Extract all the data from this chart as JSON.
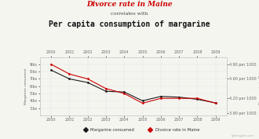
{
  "title_line1": "Divorce rate in Maine",
  "title_line2": "correlates with",
  "title_line3": "Per capita consumption of margarine",
  "years": [
    2000,
    2001,
    2002,
    2003,
    2004,
    2005,
    2006,
    2007,
    2008,
    2009
  ],
  "margarine": [
    8.2,
    7.0,
    6.5,
    5.3,
    5.2,
    4.0,
    4.6,
    4.5,
    4.2,
    3.7
  ],
  "divorce": [
    4.9,
    4.7,
    4.6,
    4.4,
    4.3,
    4.1,
    4.2,
    4.2,
    4.2,
    4.1
  ],
  "margarine_color": "#1a1a1a",
  "divorce_color": "#cc0000",
  "bg_color": "#f5f5f0",
  "left_ylim": [
    3.85,
    5.05
  ],
  "right_ylim": [
    2.0,
    10.0
  ],
  "left_yticks": [
    4.9,
    4.6,
    4.2,
    3.9
  ],
  "left_yticklabels": [
    "4.90 per 1000",
    "4.60 per 1000",
    "4.20 per 1000",
    "3.90 per 1000"
  ],
  "right_yticks": [
    9.0,
    8.0,
    7.0,
    6.0,
    5.0,
    4.0,
    3.0
  ],
  "right_yticklabels": [
    "9lbs",
    "8lbs",
    "7lbs",
    "6lbs",
    "5lbs",
    "4lbs",
    "3lbs"
  ],
  "legend_margarine": "Margarine consumed",
  "legend_divorce": "Divorce rate in Maine",
  "ylabel_left": "Divorce rate in Maine",
  "ylabel_right": "Margarine consumed",
  "source": "tylervigen.com"
}
